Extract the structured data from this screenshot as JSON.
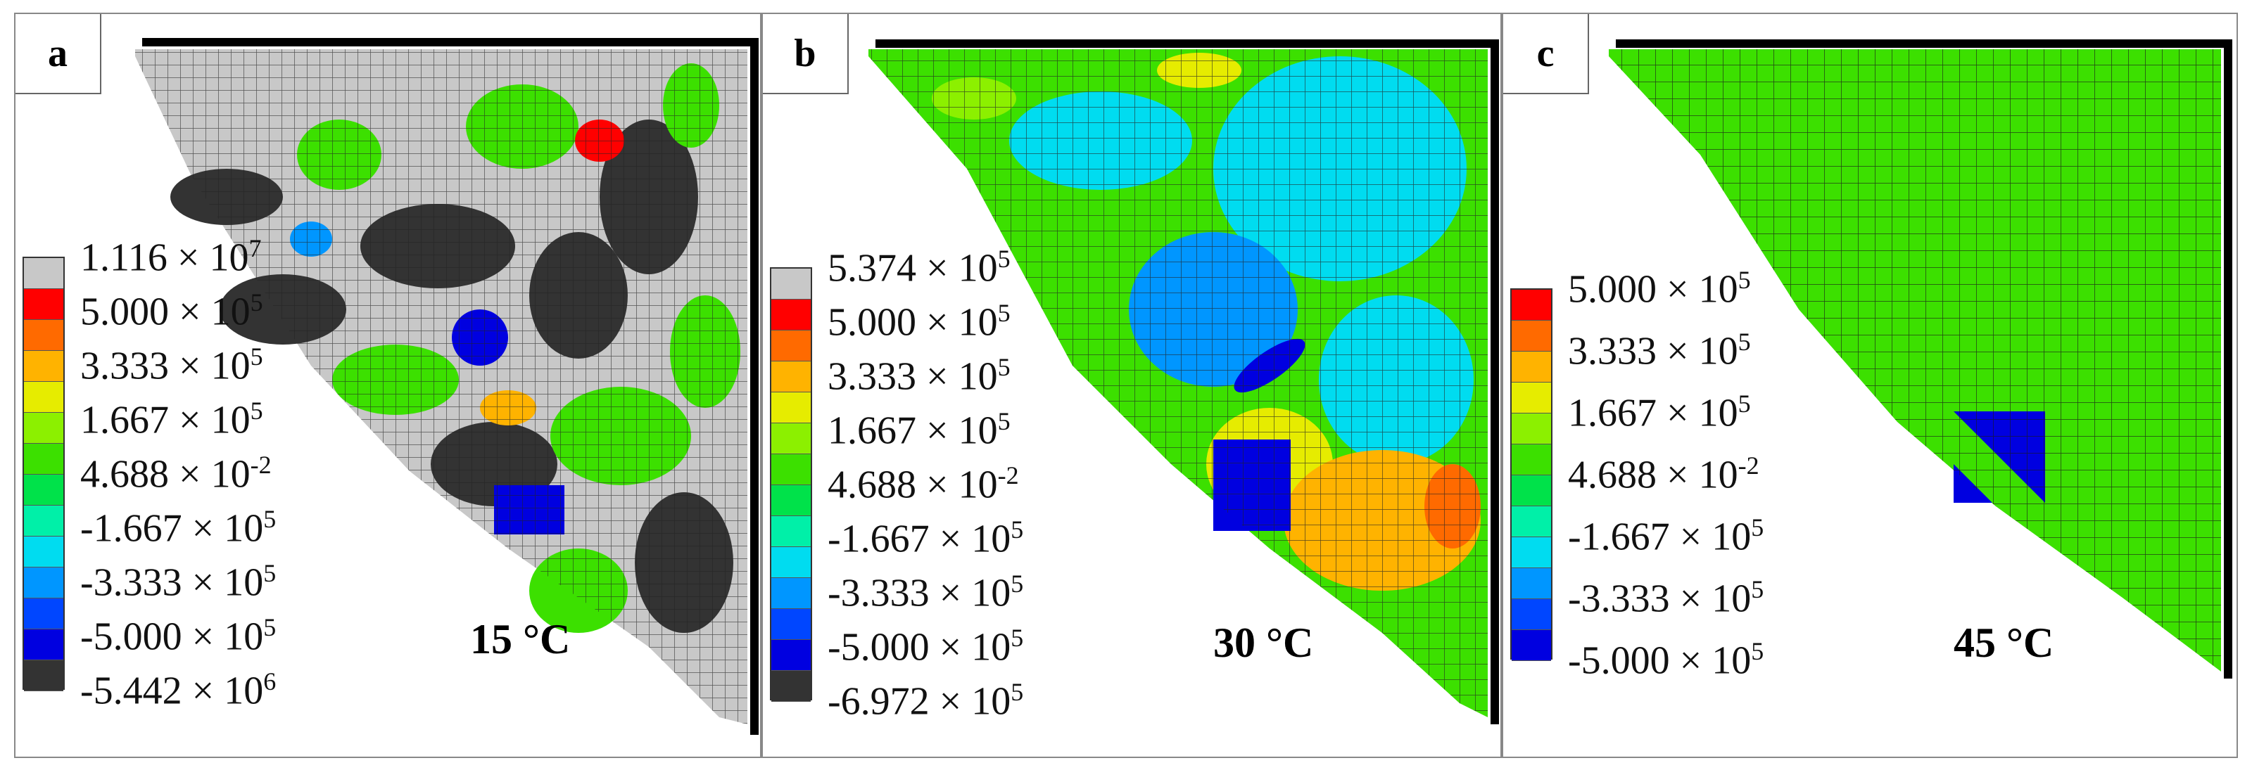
{
  "panels": [
    {
      "id": "a",
      "label": "a",
      "temperature": "15 °C",
      "legend": {
        "colors": [
          "#c8c8c8",
          "#ff0000",
          "#ff6a00",
          "#ffb300",
          "#e6ec00",
          "#8cf000",
          "#3ce000",
          "#00e24a",
          "#00f0a8",
          "#00dcf0",
          "#0096ff",
          "#0046ff",
          "#0000e0",
          "#333333"
        ],
        "labels": [
          {
            "base": "1.116 × 10",
            "exp": "7"
          },
          {
            "base": "5.000 × 10",
            "exp": "5"
          },
          {
            "base": "3.333 × 10",
            "exp": "5"
          },
          {
            "base": "1.667 × 10",
            "exp": "5"
          },
          {
            "base": "4.688 × 10",
            "exp": "-2"
          },
          {
            "base": "-1.667 × 10",
            "exp": "5"
          },
          {
            "base": "-3.333 × 10",
            "exp": "5"
          },
          {
            "base": "-5.000 × 10",
            "exp": "5"
          },
          {
            "base": "-5.442 × 10",
            "exp": "6"
          }
        ]
      }
    },
    {
      "id": "b",
      "label": "b",
      "temperature": "30 °C",
      "legend": {
        "colors": [
          "#c8c8c8",
          "#ff0000",
          "#ff6a00",
          "#ffb300",
          "#e6ec00",
          "#8cf000",
          "#3ce000",
          "#00e24a",
          "#00f0a8",
          "#00dcf0",
          "#0096ff",
          "#0046ff",
          "#0000e0",
          "#333333"
        ],
        "labels": [
          {
            "base": "5.374 × 10",
            "exp": "5"
          },
          {
            "base": "5.000 × 10",
            "exp": "5"
          },
          {
            "base": "3.333 × 10",
            "exp": "5"
          },
          {
            "base": "1.667 × 10",
            "exp": "5"
          },
          {
            "base": "4.688 × 10",
            "exp": "-2"
          },
          {
            "base": "-1.667 × 10",
            "exp": "5"
          },
          {
            "base": "-3.333 × 10",
            "exp": "5"
          },
          {
            "base": "-5.000 × 10",
            "exp": "5"
          },
          {
            "base": "-6.972 × 10",
            "exp": "5"
          }
        ]
      }
    },
    {
      "id": "c",
      "label": "c",
      "temperature": "45 °C",
      "legend": {
        "colors": [
          "#ff0000",
          "#ff6a00",
          "#ffb300",
          "#e6ec00",
          "#8cf000",
          "#3ce000",
          "#00e24a",
          "#00f0a8",
          "#00dcf0",
          "#0096ff",
          "#0046ff",
          "#0000e0"
        ],
        "labels": [
          {
            "base": "5.000 × 10",
            "exp": "5"
          },
          {
            "base": "3.333 × 10",
            "exp": "5"
          },
          {
            "base": "1.667 × 10",
            "exp": "5"
          },
          {
            "base": "4.688 × 10",
            "exp": "-2"
          },
          {
            "base": "-1.667 × 10",
            "exp": "5"
          },
          {
            "base": "-3.333 × 10",
            "exp": "5"
          },
          {
            "base": "-5.000 × 10",
            "exp": "5"
          }
        ]
      }
    }
  ]
}
